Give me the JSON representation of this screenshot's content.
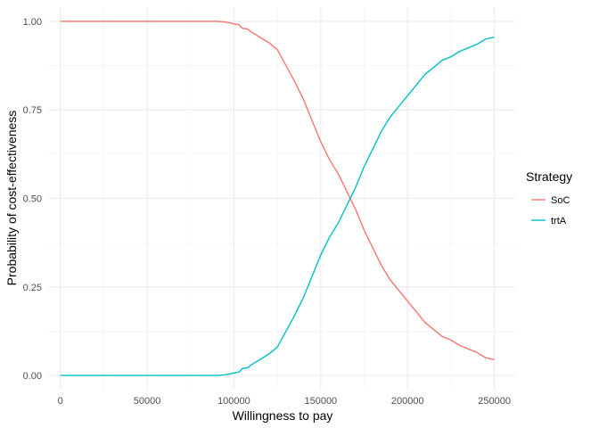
{
  "chart_data": {
    "type": "line",
    "title": "",
    "xlabel": "Willingness to pay",
    "ylabel": "Probability of cost-effectiveness",
    "xlim": [
      -7000,
      262000
    ],
    "ylim": [
      -0.04,
      1.04
    ],
    "x_ticks": [
      0,
      50000,
      100000,
      150000,
      200000,
      250000
    ],
    "x_tick_labels": [
      "0",
      "50000",
      "100000",
      "150000",
      "200000",
      "250000"
    ],
    "y_ticks": [
      0,
      0.25,
      0.5,
      0.75,
      1
    ],
    "y_tick_labels": [
      "0.00",
      "0.25",
      "0.50",
      "0.75",
      "1.00"
    ],
    "grid": true,
    "legend": {
      "title": "Strategy",
      "position": "right"
    },
    "series": [
      {
        "name": "SoC",
        "color": "#F8766D",
        "x": [
          0,
          50000,
          90000,
          95000,
          100000,
          103000,
          105000,
          108000,
          110000,
          115000,
          120000,
          125000,
          130000,
          135000,
          140000,
          145000,
          150000,
          155000,
          160000,
          165000,
          170000,
          175000,
          180000,
          185000,
          190000,
          195000,
          200000,
          205000,
          210000,
          215000,
          220000,
          225000,
          230000,
          235000,
          240000,
          245000,
          250000
        ],
        "y": [
          1,
          1,
          1,
          0.998,
          0.993,
          0.99,
          0.98,
          0.978,
          0.97,
          0.955,
          0.94,
          0.92,
          0.875,
          0.83,
          0.78,
          0.72,
          0.66,
          0.61,
          0.57,
          0.52,
          0.47,
          0.41,
          0.36,
          0.31,
          0.27,
          0.24,
          0.21,
          0.18,
          0.15,
          0.13,
          0.11,
          0.1,
          0.085,
          0.075,
          0.065,
          0.05,
          0.045
        ]
      },
      {
        "name": "trtA",
        "color": "#00BFC4",
        "x": [
          0,
          50000,
          90000,
          95000,
          100000,
          103000,
          105000,
          108000,
          110000,
          115000,
          120000,
          125000,
          130000,
          135000,
          140000,
          145000,
          150000,
          155000,
          160000,
          165000,
          170000,
          175000,
          180000,
          185000,
          190000,
          195000,
          200000,
          205000,
          210000,
          215000,
          220000,
          225000,
          230000,
          235000,
          240000,
          245000,
          250000
        ],
        "y": [
          0,
          0,
          0,
          0.002,
          0.007,
          0.01,
          0.02,
          0.022,
          0.03,
          0.045,
          0.06,
          0.08,
          0.125,
          0.17,
          0.22,
          0.28,
          0.34,
          0.39,
          0.43,
          0.48,
          0.53,
          0.59,
          0.64,
          0.69,
          0.73,
          0.76,
          0.79,
          0.82,
          0.85,
          0.87,
          0.89,
          0.9,
          0.915,
          0.925,
          0.935,
          0.95,
          0.955
        ]
      }
    ]
  }
}
